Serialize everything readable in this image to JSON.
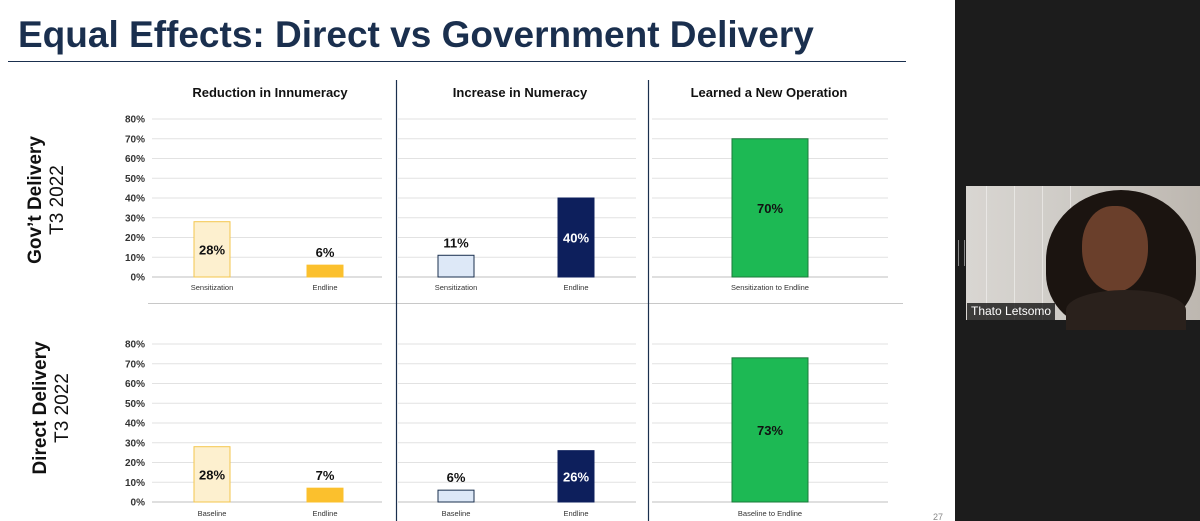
{
  "slide": {
    "title_bold": "Equal Effects:",
    "title_rest": " Direct vs Government Delivery",
    "page_number": "27"
  },
  "rows": [
    {
      "label_line1": "Gov’t Delivery",
      "label_line2": "T3 2022"
    },
    {
      "label_line1": "Direct Delivery",
      "label_line2": "T3 2022"
    }
  ],
  "column_titles": [
    "Reduction in Innumeracy",
    "Increase in Numeracy",
    "Learned a New Operation"
  ],
  "colors": {
    "innumeracy_first": "#fdf0cf",
    "innumeracy_first_border": "#f3c64d",
    "innumeracy_second": "#fbc02d",
    "numeracy_first": "#dde8f7",
    "numeracy_first_border": "#1a2f4e",
    "numeracy_second": "#0d1f5c",
    "operation": "#1db954",
    "title_navy": "#1a2f4e"
  },
  "chart_data": [
    {
      "type": "bar",
      "title": "Reduction in Innumeracy",
      "row": "Gov’t Delivery T3 2022",
      "categories": [
        "Sensitization",
        "Endline"
      ],
      "values": [
        28,
        6
      ],
      "value_labels": [
        "28%",
        "6%"
      ],
      "ylim": [
        0,
        80
      ],
      "yticks": [
        "0%",
        "10%",
        "20%",
        "30%",
        "40%",
        "50%",
        "60%",
        "70%",
        "80%"
      ],
      "grid": true
    },
    {
      "type": "bar",
      "title": "Increase in Numeracy",
      "row": "Gov’t Delivery T3 2022",
      "categories": [
        "Sensitization",
        "Endline"
      ],
      "values": [
        11,
        40
      ],
      "value_labels": [
        "11%",
        "40%"
      ],
      "ylim": [
        0,
        80
      ],
      "grid": true
    },
    {
      "type": "bar",
      "title": "Learned a New Operation",
      "row": "Gov’t Delivery T3 2022",
      "categories": [
        "Sensitization to Endline"
      ],
      "values": [
        70
      ],
      "value_labels": [
        "70%"
      ],
      "ylim": [
        0,
        80
      ],
      "grid": true
    },
    {
      "type": "bar",
      "title": "Reduction in Innumeracy",
      "row": "Direct Delivery T3 2022",
      "categories": [
        "Baseline",
        "Endline"
      ],
      "values": [
        28,
        7
      ],
      "value_labels": [
        "28%",
        "7%"
      ],
      "ylim": [
        0,
        80
      ],
      "yticks": [
        "0%",
        "10%",
        "20%",
        "30%",
        "40%",
        "50%",
        "60%",
        "70%",
        "80%"
      ],
      "grid": true
    },
    {
      "type": "bar",
      "title": "Increase in Numeracy",
      "row": "Direct Delivery T3 2022",
      "categories": [
        "Baseline",
        "Endline"
      ],
      "values": [
        6,
        26
      ],
      "value_labels": [
        "6%",
        "26%"
      ],
      "ylim": [
        0,
        80
      ],
      "grid": true
    },
    {
      "type": "bar",
      "title": "Learned a New Operation",
      "row": "Direct Delivery T3 2022",
      "categories": [
        "Baseline to Endline"
      ],
      "values": [
        73
      ],
      "value_labels": [
        "73%"
      ],
      "ylim": [
        0,
        80
      ],
      "grid": true
    }
  ],
  "webcam": {
    "participant_name": "Thato Letsomo"
  }
}
